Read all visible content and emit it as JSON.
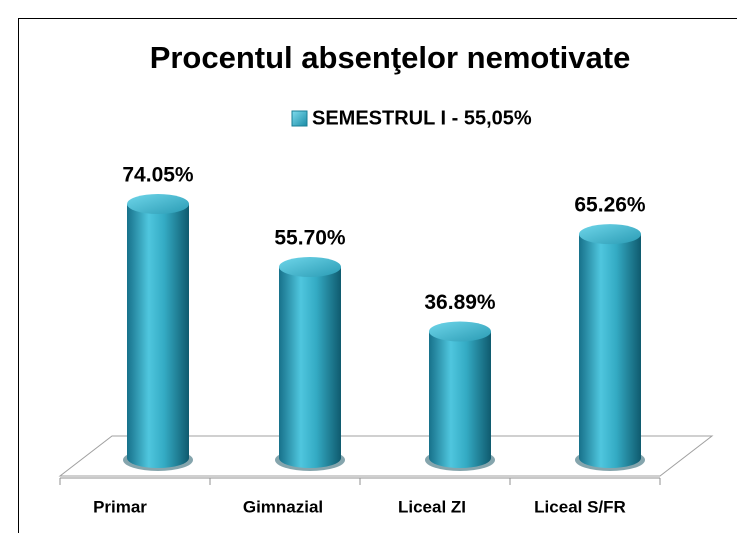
{
  "chart_data": {
    "type": "bar3d-cylinder",
    "title": "Procentul absenţelor nemotivate",
    "legend": "SEMESTRUL I - 55,05%",
    "categories": [
      "Primar",
      "Gimnazial",
      "Liceal ZI",
      "Liceal S/FR"
    ],
    "values": [
      74.05,
      55.7,
      36.89,
      65.26
    ],
    "value_labels": [
      "74.05%",
      "55.70%",
      "36.89%",
      "65.26%"
    ],
    "color": "#2fa7c0"
  }
}
